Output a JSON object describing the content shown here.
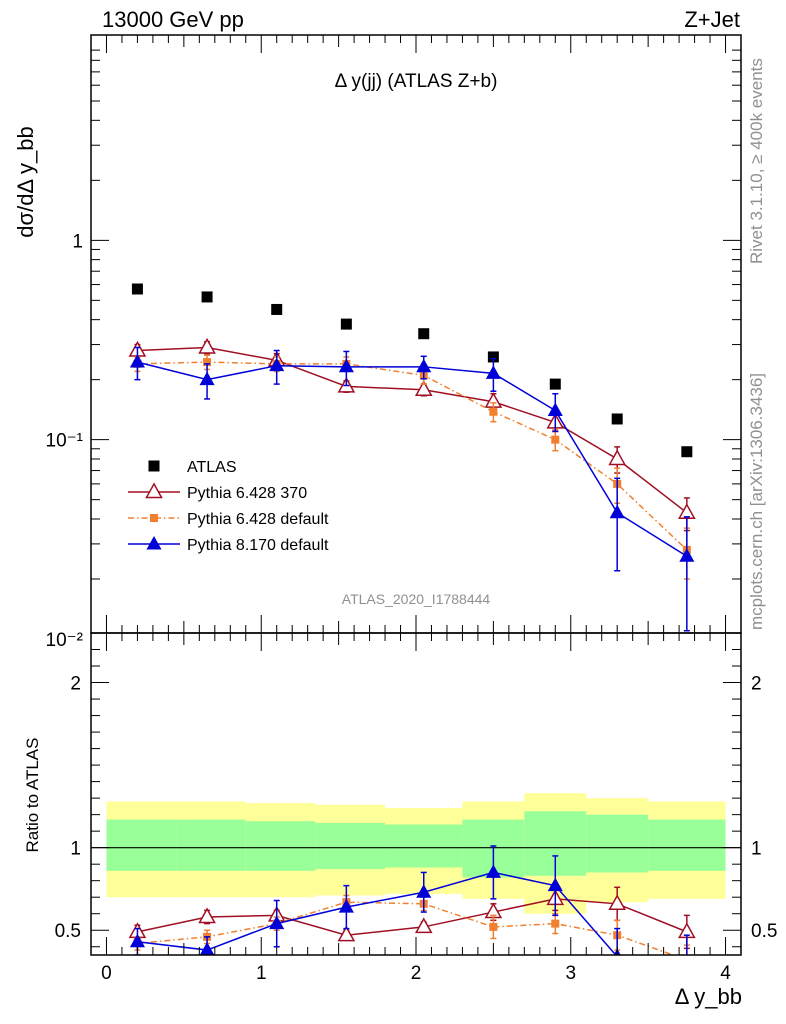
{
  "header": {
    "energy_label": "13000 GeV pp",
    "process_label": "Z+Jet",
    "side_label_1": "Rivet 3.1.10, ≥ 400k events",
    "side_label_2": "mcplots.cern.ch [arXiv:1306.3436]"
  },
  "chart_data": [
    {
      "type": "scatter",
      "panel": "main",
      "title": "Δ y(jj) (ATLAS Z+b)",
      "analysis_label": "ATLAS_2020_I1788444",
      "ylabel": "dσ/dΔ y_bb",
      "xlim": [
        -0.1,
        4.1
      ],
      "ylim": [
        0.01,
        10
      ],
      "yscale": "log",
      "ytick_labels": [
        "10⁻²",
        "10⁻¹",
        "1"
      ],
      "legend_position": "lower-left",
      "x": [
        0.2,
        0.65,
        1.1,
        1.55,
        2.05,
        2.5,
        2.9,
        3.3,
        3.75
      ],
      "series": [
        {
          "name": "ATLAS",
          "color": "#000000",
          "marker": "square",
          "values": [
            0.57,
            0.52,
            0.45,
            0.38,
            0.34,
            0.26,
            0.19,
            0.127,
            0.087
          ]
        },
        {
          "name": "Pythia 6.428 370",
          "color": "#a00f23",
          "marker": "open-triangle",
          "line": "solid",
          "values": [
            0.28,
            0.29,
            0.25,
            0.185,
            0.178,
            0.155,
            0.122,
            0.08,
            0.043
          ],
          "err": [
            0.02,
            0.02,
            0.02,
            0.012,
            0.012,
            0.015,
            0.012,
            0.012,
            0.008
          ]
        },
        {
          "name": "Pythia 6.428 default",
          "color": "#f08030",
          "marker": "square",
          "line": "dashdot",
          "values": [
            0.24,
            0.245,
            0.24,
            0.24,
            0.21,
            0.138,
            0.1,
            0.06,
            0.028
          ],
          "err": [
            0.02,
            0.02,
            0.02,
            0.02,
            0.02,
            0.015,
            0.012,
            0.012,
            0.008
          ]
        },
        {
          "name": "Pythia 8.170 default",
          "color": "#0000d8",
          "marker": "triangle",
          "line": "solid",
          "values": [
            0.245,
            0.2,
            0.235,
            0.232,
            0.232,
            0.215,
            0.14,
            0.043,
            0.026
          ],
          "err": [
            0.045,
            0.04,
            0.045,
            0.045,
            0.03,
            0.04,
            0.03,
            0.021,
            0.015
          ]
        }
      ]
    },
    {
      "type": "scatter",
      "panel": "ratio",
      "ylabel": "Ratio to ATLAS",
      "xlabel": "Δ y_bb",
      "xlim": [
        -0.1,
        4.1
      ],
      "ylim": [
        0.35,
        2.3
      ],
      "xticks": [
        0,
        1,
        2,
        3,
        4
      ],
      "yticks": [
        0.5,
        1,
        2
      ],
      "x": [
        0.2,
        0.65,
        1.1,
        1.55,
        2.05,
        2.5,
        2.9,
        3.3,
        3.75
      ],
      "bins": [
        [
          0,
          0.45
        ],
        [
          0.45,
          0.9
        ],
        [
          0.9,
          1.35
        ],
        [
          1.35,
          1.8
        ],
        [
          1.8,
          2.3
        ],
        [
          2.3,
          2.7
        ],
        [
          2.7,
          3.1
        ],
        [
          3.1,
          3.5
        ],
        [
          3.5,
          4.0
        ]
      ],
      "band_inner": [
        [
          0.86,
          1.17
        ],
        [
          0.86,
          1.17
        ],
        [
          0.86,
          1.16
        ],
        [
          0.87,
          1.15
        ],
        [
          0.88,
          1.14
        ],
        [
          0.82,
          1.17
        ],
        [
          0.83,
          1.22
        ],
        [
          0.85,
          1.2
        ],
        [
          0.86,
          1.17
        ]
      ],
      "band_outer": [
        [
          0.7,
          1.28
        ],
        [
          0.7,
          1.28
        ],
        [
          0.7,
          1.27
        ],
        [
          0.71,
          1.26
        ],
        [
          0.72,
          1.24
        ],
        [
          0.69,
          1.28
        ],
        [
          0.6,
          1.33
        ],
        [
          0.67,
          1.3
        ],
        [
          0.69,
          1.28
        ]
      ],
      "band_colors": {
        "inner": "#99ff99",
        "outer": "#ffff99"
      },
      "series": [
        {
          "name": "Pythia 6.428 370",
          "color": "#a00f23",
          "values": [
            0.49,
            0.58,
            0.59,
            0.47,
            0.52,
            0.61,
            0.69,
            0.66,
            0.49
          ],
          "err": [
            0.04,
            0.04,
            0.03,
            0.03,
            0.03,
            0.05,
            0.07,
            0.1,
            0.1
          ]
        },
        {
          "name": "Pythia 6.428 default",
          "color": "#f08030",
          "values": [
            0.42,
            0.46,
            0.54,
            0.67,
            0.66,
            0.52,
            0.54,
            0.47,
            0.32
          ],
          "err": [
            0.04,
            0.04,
            0.04,
            0.04,
            0.04,
            0.07,
            0.06,
            0.09,
            0.09
          ]
        },
        {
          "name": "Pythia 8.170 default",
          "color": "#0000d8",
          "values": [
            0.43,
            0.38,
            0.54,
            0.64,
            0.73,
            0.85,
            0.77,
            0.34,
            0.3
          ],
          "err": [
            0.08,
            0.08,
            0.14,
            0.13,
            0.12,
            0.16,
            0.18,
            0.17,
            0.17
          ]
        }
      ]
    }
  ]
}
